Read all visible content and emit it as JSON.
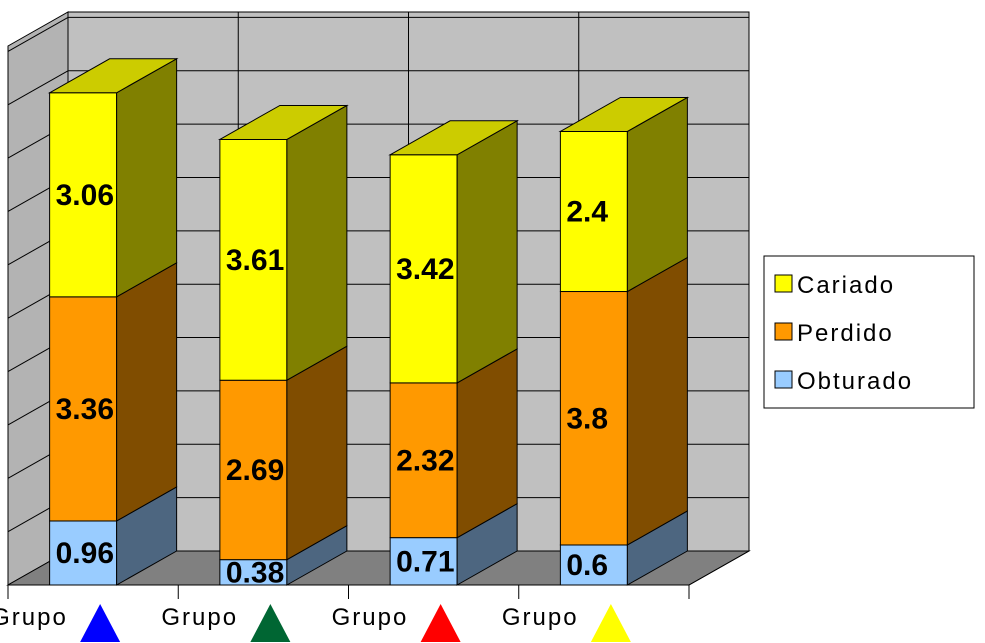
{
  "chart_data": {
    "type": "bar",
    "stacked": true,
    "three_d": true,
    "categories": [
      "Grupo",
      "Grupo",
      "Grupo",
      "Grupo"
    ],
    "category_markers": [
      {
        "icon": "triangle-icon",
        "color": "#0000ff"
      },
      {
        "icon": "triangle-icon",
        "color": "#006633"
      },
      {
        "icon": "triangle-icon",
        "color": "#ff0000"
      },
      {
        "icon": "triangle-icon",
        "color": "#ffff00"
      }
    ],
    "series": [
      {
        "name": "Obturado",
        "values": [
          0.96,
          0.38,
          0.71,
          0.6
        ],
        "color": "#99ccff"
      },
      {
        "name": "Perdido",
        "values": [
          3.36,
          2.69,
          2.32,
          3.8
        ],
        "color": "#ff9900"
      },
      {
        "name": "Cariado",
        "values": [
          3.06,
          3.61,
          3.42,
          2.4
        ],
        "color": "#ffff00"
      }
    ],
    "data_labels": true,
    "ylim": [
      0,
      8
    ],
    "grid": true,
    "legend_position": "right",
    "legend_order": [
      "Cariado",
      "Perdido",
      "Obturado"
    ]
  }
}
